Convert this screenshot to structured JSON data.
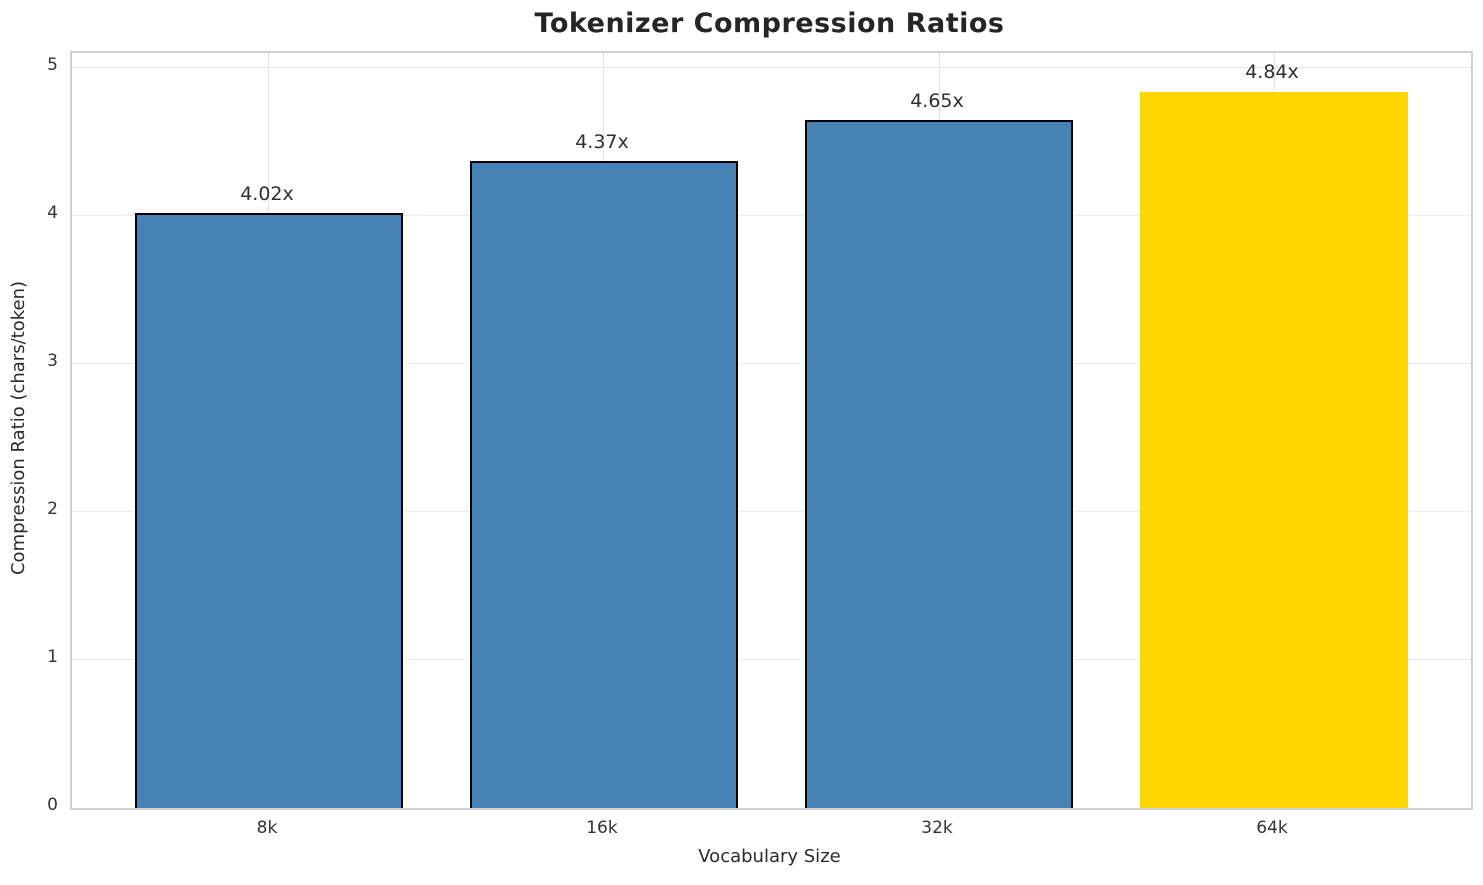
{
  "title": "Tokenizer Compression Ratios",
  "chart_data": {
    "type": "bar",
    "title": "Tokenizer Compression Ratios",
    "categories": [
      "8k",
      "16k",
      "32k",
      "64k"
    ],
    "values": [
      4.02,
      4.37,
      4.65,
      4.84
    ],
    "bar_labels": [
      "4.02x",
      "4.37x",
      "4.65x",
      "4.84x"
    ],
    "xlabel": "Vocabulary Size",
    "ylabel": "Compression Ratio (chars/token)",
    "ylim": [
      0,
      5.1
    ],
    "yticks": [
      0,
      1,
      2,
      3,
      4,
      5
    ],
    "grid": true,
    "legend": "none",
    "bar_colors": [
      "#4682B4",
      "#4682B4",
      "#4682B4",
      "#FFD700"
    ],
    "bar_edge_colors": [
      "#000000",
      "#000000",
      "#000000",
      "none"
    ],
    "highlight_index": 3,
    "accent_blue": "#4682B4",
    "accent_gold": "#FFD700",
    "spine_color": "#d0d0d0",
    "grid_color": "#e8e8e8"
  }
}
